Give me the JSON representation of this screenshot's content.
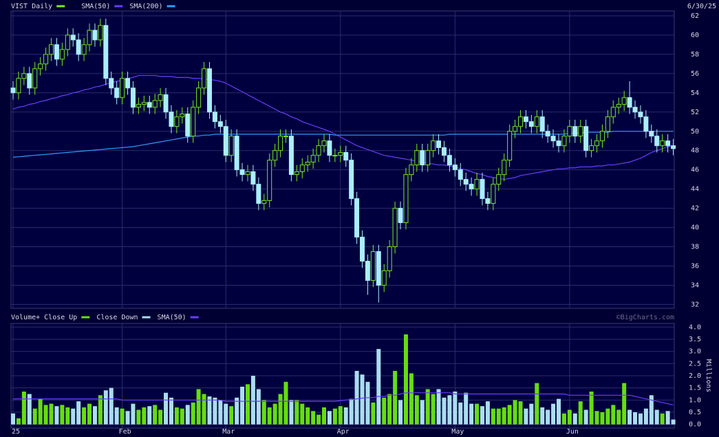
{
  "chart_data": [
    {
      "type": "candlestick",
      "title": "VIST Daily",
      "date_label": "6/30/25",
      "up_color": "#77ee11",
      "down_color": "#aaeeff",
      "open": [
        54.5,
        54.0,
        55.5,
        56.0,
        54.5,
        56.5,
        57.0,
        58.0,
        59.0,
        57.5,
        58.5,
        60.0,
        59.5,
        58.0,
        59.0,
        60.5,
        59.5,
        61.0,
        55.5,
        54.5,
        53.5,
        55.5,
        54.5,
        52.5,
        52.8,
        53.0,
        52.5,
        53.2,
        53.8,
        52.0,
        50.5,
        51.5,
        51.8,
        49.5,
        52.5,
        54.5,
        56.5,
        52.0,
        51.0,
        50.5,
        47.5,
        49.5,
        46.0,
        45.5,
        45.8,
        44.5,
        42.5,
        42.8,
        47.0,
        48.0,
        49.5,
        49.5,
        45.5,
        45.8,
        46.5,
        46.8,
        47.5,
        48.5,
        49.0,
        47.5,
        47.5,
        47.8,
        47.0,
        43.0,
        39.0,
        36.5,
        34.5,
        37.5,
        34.0,
        35.5,
        38.0,
        42.0,
        40.5,
        45.5,
        46.5,
        48.0,
        46.5,
        48.0,
        49.0,
        48.3,
        47.5,
        46.5,
        46.0,
        45.0,
        44.5,
        44.0,
        45.0,
        43.0,
        42.5,
        44.5,
        45.5,
        47.0,
        50.0,
        50.5,
        51.5,
        51.0,
        50.5,
        51.5,
        50.0,
        49.5,
        49.0,
        48.5,
        49.5,
        50.5,
        49.5,
        50.5,
        48.0,
        48.5,
        49.0,
        50.0,
        51.5,
        52.5,
        52.8,
        53.5,
        52.5,
        52.0,
        51.5,
        50.0,
        49.5,
        48.5,
        49.0,
        48.5
      ],
      "high": [
        55.2,
        56.2,
        56.7,
        56.7,
        57.2,
        57.7,
        58.7,
        59.7,
        59.7,
        59.2,
        60.7,
        60.7,
        60.2,
        59.7,
        61.2,
        61.2,
        61.7,
        61.7,
        56.2,
        55.2,
        56.2,
        56.2,
        55.2,
        53.5,
        53.7,
        53.7,
        53.9,
        54.5,
        54.5,
        52.7,
        52.2,
        52.5,
        52.5,
        53.2,
        55.2,
        57.2,
        57.2,
        52.7,
        51.7,
        51.2,
        50.2,
        50.2,
        46.7,
        46.5,
        46.5,
        45.2,
        43.5,
        47.7,
        48.7,
        50.2,
        50.2,
        50.2,
        46.5,
        47.2,
        47.5,
        48.2,
        49.2,
        49.7,
        49.7,
        48.2,
        48.5,
        48.5,
        47.7,
        43.7,
        39.7,
        37.2,
        38.2,
        38.2,
        36.2,
        38.7,
        42.7,
        42.7,
        46.2,
        47.2,
        48.7,
        48.7,
        48.7,
        49.7,
        49.7,
        49.0,
        48.2,
        47.2,
        46.7,
        45.7,
        45.2,
        45.7,
        45.7,
        43.7,
        45.2,
        46.2,
        47.7,
        50.7,
        51.2,
        52.2,
        52.2,
        51.7,
        52.2,
        52.2,
        50.7,
        50.2,
        49.7,
        50.2,
        51.2,
        51.2,
        51.2,
        51.2,
        49.2,
        49.7,
        50.7,
        52.2,
        53.2,
        53.5,
        54.2,
        55.2,
        53.2,
        52.7,
        52.2,
        50.7,
        50.2,
        49.7,
        49.7,
        49.2
      ],
      "low": [
        53.3,
        53.3,
        54.8,
        53.8,
        53.8,
        55.8,
        56.3,
        57.3,
        56.8,
        56.8,
        57.8,
        58.8,
        57.3,
        57.3,
        58.3,
        58.8,
        58.8,
        54.8,
        53.8,
        52.8,
        52.8,
        53.8,
        51.8,
        51.8,
        52.1,
        51.8,
        51.8,
        52.5,
        51.3,
        49.8,
        49.8,
        50.8,
        48.8,
        48.8,
        51.8,
        53.8,
        51.3,
        50.3,
        49.8,
        46.8,
        46.8,
        45.3,
        44.8,
        44.8,
        43.8,
        41.8,
        41.8,
        42.1,
        46.3,
        47.3,
        48.8,
        44.8,
        44.8,
        45.1,
        45.8,
        46.1,
        46.8,
        47.8,
        46.8,
        46.8,
        46.8,
        46.3,
        42.3,
        38.3,
        35.8,
        33.0,
        33.8,
        32.2,
        33.3,
        34.8,
        37.3,
        39.8,
        39.8,
        44.8,
        45.8,
        45.8,
        45.8,
        47.3,
        47.6,
        46.8,
        45.8,
        45.3,
        44.3,
        43.8,
        43.3,
        43.3,
        42.3,
        41.8,
        41.8,
        43.8,
        44.8,
        46.3,
        49.3,
        49.8,
        50.3,
        49.8,
        49.8,
        49.3,
        48.8,
        48.3,
        47.8,
        47.8,
        48.8,
        48.8,
        48.8,
        47.3,
        47.3,
        47.8,
        48.3,
        49.3,
        50.8,
        51.8,
        52.1,
        51.8,
        51.3,
        50.8,
        49.3,
        48.8,
        47.8,
        47.8,
        47.8,
        47.5
      ],
      "close": [
        54.0,
        55.5,
        56.0,
        54.5,
        56.5,
        57.0,
        58.0,
        59.0,
        57.5,
        58.5,
        60.0,
        59.5,
        58.0,
        59.0,
        60.5,
        59.5,
        61.0,
        55.5,
        54.5,
        53.5,
        55.5,
        54.5,
        52.5,
        52.8,
        53.0,
        52.5,
        53.2,
        53.8,
        52.0,
        50.5,
        51.5,
        51.8,
        49.5,
        52.5,
        54.5,
        56.5,
        52.0,
        51.0,
        50.5,
        47.5,
        49.5,
        46.0,
        45.5,
        45.8,
        44.5,
        42.5,
        42.8,
        47.0,
        48.0,
        49.5,
        49.5,
        45.5,
        45.8,
        46.5,
        46.8,
        47.5,
        48.5,
        49.0,
        47.5,
        47.5,
        47.8,
        47.0,
        43.0,
        39.0,
        36.5,
        34.5,
        37.5,
        34.0,
        35.5,
        38.0,
        42.0,
        40.5,
        45.5,
        46.5,
        48.0,
        46.5,
        48.0,
        49.0,
        48.3,
        47.5,
        46.5,
        46.0,
        45.0,
        44.5,
        44.0,
        45.0,
        43.0,
        42.5,
        44.5,
        45.5,
        47.0,
        50.0,
        50.5,
        51.5,
        51.0,
        50.5,
        51.5,
        50.0,
        49.5,
        49.0,
        48.5,
        49.5,
        50.5,
        49.5,
        50.5,
        48.0,
        48.5,
        49.0,
        50.0,
        51.5,
        52.5,
        52.8,
        53.5,
        52.5,
        52.0,
        51.5,
        50.0,
        49.5,
        48.5,
        49.0,
        48.5,
        48.2
      ],
      "series": [
        {
          "name": "SMA(50)",
          "color": "#6a3cff",
          "values": [
            52.3,
            52.5,
            52.6,
            52.8,
            52.9,
            53.1,
            53.2,
            53.4,
            53.5,
            53.7,
            53.8,
            54.0,
            54.1,
            54.3,
            54.4,
            54.6,
            54.7,
            54.9,
            55.0,
            55.2,
            55.3,
            55.5,
            55.6,
            55.8,
            55.8,
            55.8,
            55.8,
            55.7,
            55.7,
            55.7,
            55.6,
            55.6,
            55.6,
            55.5,
            55.5,
            55.4,
            55.4,
            55.3,
            55.2,
            55.0,
            54.7,
            54.4,
            54.1,
            53.8,
            53.5,
            53.2,
            52.9,
            52.6,
            52.3,
            52.0,
            51.8,
            51.5,
            51.3,
            51.0,
            50.8,
            50.6,
            50.4,
            50.2,
            50.0,
            49.7,
            49.4,
            49.1,
            48.8,
            48.5,
            48.3,
            48.1,
            47.9,
            47.7,
            47.5,
            47.4,
            47.3,
            47.2,
            47.1,
            47.0,
            46.9,
            46.8,
            46.7,
            46.6,
            46.5,
            46.5,
            46.4,
            46.3,
            46.1,
            46.0,
            45.8,
            45.6,
            45.5,
            45.3,
            45.2,
            45.1,
            45.0,
            45.1,
            45.2,
            45.4,
            45.5,
            45.6,
            45.7,
            45.8,
            45.9,
            46.0,
            46.1,
            46.1,
            46.2,
            46.2,
            46.3,
            46.3,
            46.3,
            46.4,
            46.4,
            46.5,
            46.5,
            46.6,
            46.7,
            46.8,
            47.0,
            47.2,
            47.5,
            47.8,
            48.0,
            48.2,
            48.4,
            48.5
          ]
        },
        {
          "name": "SMA(200)",
          "color": "#2f9bff",
          "values": [
            47.3,
            47.35,
            47.4,
            47.45,
            47.5,
            47.55,
            47.6,
            47.65,
            47.7,
            47.75,
            47.8,
            47.85,
            47.9,
            47.95,
            48.0,
            48.05,
            48.1,
            48.15,
            48.2,
            48.25,
            48.3,
            48.35,
            48.4,
            48.5,
            48.6,
            48.7,
            48.8,
            48.9,
            49.0,
            49.1,
            49.2,
            49.3,
            49.4,
            49.5,
            49.5,
            49.6,
            49.6,
            49.7,
            49.7,
            49.7,
            49.7,
            49.7,
            49.7,
            49.7,
            49.7,
            49.7,
            49.7,
            49.7,
            49.7,
            49.7,
            49.7,
            49.7,
            49.7,
            49.7,
            49.7,
            49.7,
            49.7,
            49.7,
            49.7,
            49.6,
            49.6,
            49.6,
            49.6,
            49.6,
            49.6,
            49.6,
            49.6,
            49.6,
            49.6,
            49.6,
            49.6,
            49.6,
            49.6,
            49.6,
            49.6,
            49.6,
            49.6,
            49.6,
            49.6,
            49.6,
            49.7,
            49.7,
            49.7,
            49.7,
            49.7,
            49.7,
            49.7,
            49.7,
            49.7,
            49.7,
            49.7,
            49.7,
            49.7,
            49.7,
            49.7,
            49.7,
            49.7,
            49.7,
            49.7,
            49.7,
            49.7,
            49.7,
            49.8,
            49.8,
            49.8,
            49.9,
            49.9,
            49.9,
            49.9,
            49.9,
            50.0,
            50.0,
            50.0,
            50.0,
            50.0,
            50.0,
            50.0,
            50.0,
            50.0,
            50.0,
            50.0,
            50.0
          ]
        }
      ],
      "ylim": [
        31.6,
        62.5
      ],
      "yticks": [
        32,
        34,
        36,
        38,
        40,
        42,
        44,
        46,
        48,
        50,
        52,
        54,
        56,
        58,
        60,
        62
      ],
      "grid": true
    },
    {
      "type": "bar",
      "title": "Volume+",
      "credit": "©BigCharts.com",
      "ylabel": "Millions",
      "legend": [
        {
          "name": "Close Up",
          "color": "#66dd11"
        },
        {
          "name": "Close Down",
          "color": "#aaddee"
        }
      ],
      "values": [
        0.45,
        0.25,
        1.35,
        1.25,
        0.65,
        1.05,
        0.8,
        0.85,
        0.75,
        0.8,
        0.7,
        0.65,
        0.95,
        0.7,
        0.85,
        0.75,
        1.2,
        1.4,
        1.5,
        0.7,
        0.65,
        0.55,
        0.85,
        0.6,
        0.7,
        0.75,
        0.8,
        0.6,
        1.3,
        1.1,
        0.7,
        0.65,
        0.8,
        0.9,
        1.45,
        1.25,
        1.15,
        1.1,
        1.0,
        0.85,
        0.75,
        1.1,
        1.55,
        1.65,
        2.0,
        1.45,
        1.0,
        0.7,
        0.85,
        1.25,
        1.75,
        1.0,
        1.0,
        0.85,
        0.7,
        0.55,
        0.4,
        0.7,
        0.55,
        0.65,
        0.75,
        0.7,
        1.05,
        2.2,
        2.05,
        1.75,
        0.9,
        3.1,
        1.1,
        1.25,
        2.2,
        1.0,
        3.7,
        2.1,
        1.2,
        1.0,
        1.45,
        1.25,
        1.45,
        1.1,
        1.2,
        1.35,
        0.9,
        1.3,
        0.85,
        0.85,
        0.75,
        0.95,
        0.65,
        0.65,
        0.7,
        0.8,
        1.0,
        0.95,
        0.65,
        0.85,
        1.7,
        0.7,
        0.6,
        0.85,
        1.05,
        0.45,
        0.6,
        0.45,
        0.95,
        0.6,
        1.35,
        0.55,
        0.5,
        0.65,
        0.8,
        0.6,
        1.7,
        0.6,
        0.5,
        0.45,
        0.65,
        1.2,
        0.6,
        0.45,
        0.55,
        0.2
      ],
      "series": [
        {
          "name": "SMA(50)",
          "color": "#6a3cff",
          "values": [
            1.05,
            1.05,
            1.05,
            1.05,
            1.05,
            1.05,
            1.05,
            1.05,
            1.05,
            1.05,
            1.05,
            1.05,
            1.05,
            1.05,
            1.05,
            1.05,
            1.05,
            1.05,
            1.05,
            1.05,
            1.0,
            1.0,
            1.0,
            1.0,
            1.0,
            1.0,
            1.0,
            1.0,
            1.0,
            1.0,
            1.0,
            1.0,
            1.0,
            1.0,
            1.0,
            1.0,
            1.0,
            1.0,
            1.0,
            0.95,
            0.95,
            0.95,
            0.95,
            0.95,
            0.95,
            0.95,
            0.95,
            0.95,
            0.95,
            0.95,
            0.95,
            0.95,
            0.95,
            0.95,
            0.95,
            0.95,
            0.95,
            0.95,
            0.95,
            0.95,
            0.98,
            1.0,
            1.02,
            1.05,
            1.08,
            1.1,
            1.1,
            1.15,
            1.15,
            1.2,
            1.2,
            1.25,
            1.3,
            1.3,
            1.3,
            1.3,
            1.3,
            1.3,
            1.3,
            1.3,
            1.3,
            1.25,
            1.25,
            1.25,
            1.25,
            1.25,
            1.25,
            1.25,
            1.25,
            1.25,
            1.25,
            1.25,
            1.25,
            1.25,
            1.25,
            1.25,
            1.25,
            1.25,
            1.25,
            1.25,
            1.25,
            1.25,
            1.2,
            1.2,
            1.2,
            1.2,
            1.2,
            1.2,
            1.2,
            1.2,
            1.2,
            1.2,
            1.2,
            1.2,
            1.15,
            1.1,
            1.05,
            1.0,
            0.95,
            0.9,
            0.85,
            0.8
          ]
        }
      ],
      "xticks": [
        {
          "value": 0,
          "label": "25"
        },
        {
          "value": 20,
          "label": "Feb"
        },
        {
          "value": 39,
          "label": "Mar"
        },
        {
          "value": 60,
          "label": "Apr"
        },
        {
          "value": 81,
          "label": "May"
        },
        {
          "value": 102,
          "label": "Jun"
        }
      ],
      "ylim": [
        -0.15,
        4.15
      ],
      "yticks": [
        {
          "value": 0,
          "label": "0.0"
        },
        0.5,
        {
          "value": 1,
          "label": "1.0"
        },
        1.5,
        {
          "value": 2,
          "label": "2.0"
        },
        2.5,
        {
          "value": 3,
          "label": "3.0"
        },
        3.5,
        {
          "value": 4,
          "label": "4.0"
        }
      ],
      "grid": true
    }
  ]
}
